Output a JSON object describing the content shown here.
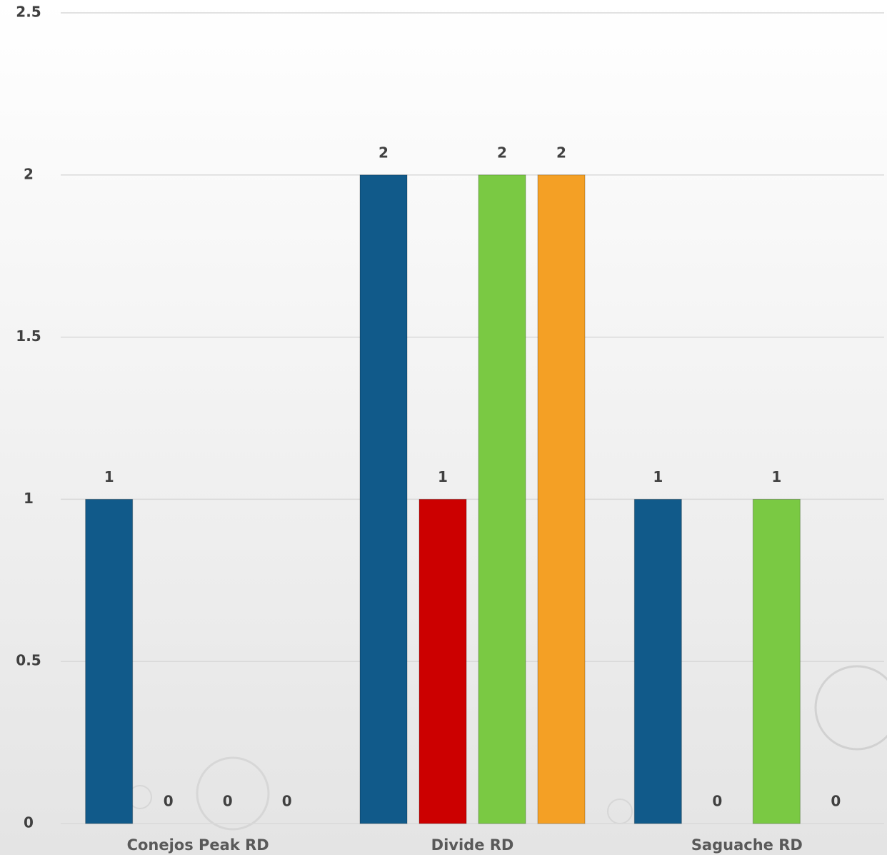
{
  "chart_data": {
    "type": "bar",
    "categories": [
      "Conejos Peak RD",
      "Divide RD",
      "Saguache RD"
    ],
    "series": [
      {
        "color": "#115a8a",
        "values": [
          1,
          2,
          1
        ]
      },
      {
        "color": "#cc0000",
        "values": [
          0,
          1,
          0
        ]
      },
      {
        "color": "#7ac943",
        "values": [
          0,
          2,
          1
        ]
      },
      {
        "color": "#f4a025",
        "values": [
          0,
          2,
          0
        ]
      }
    ],
    "ylim": [
      0,
      2.5
    ],
    "yticks": [
      0,
      0.5,
      1,
      1.5,
      2,
      2.5
    ],
    "grid": true
  }
}
